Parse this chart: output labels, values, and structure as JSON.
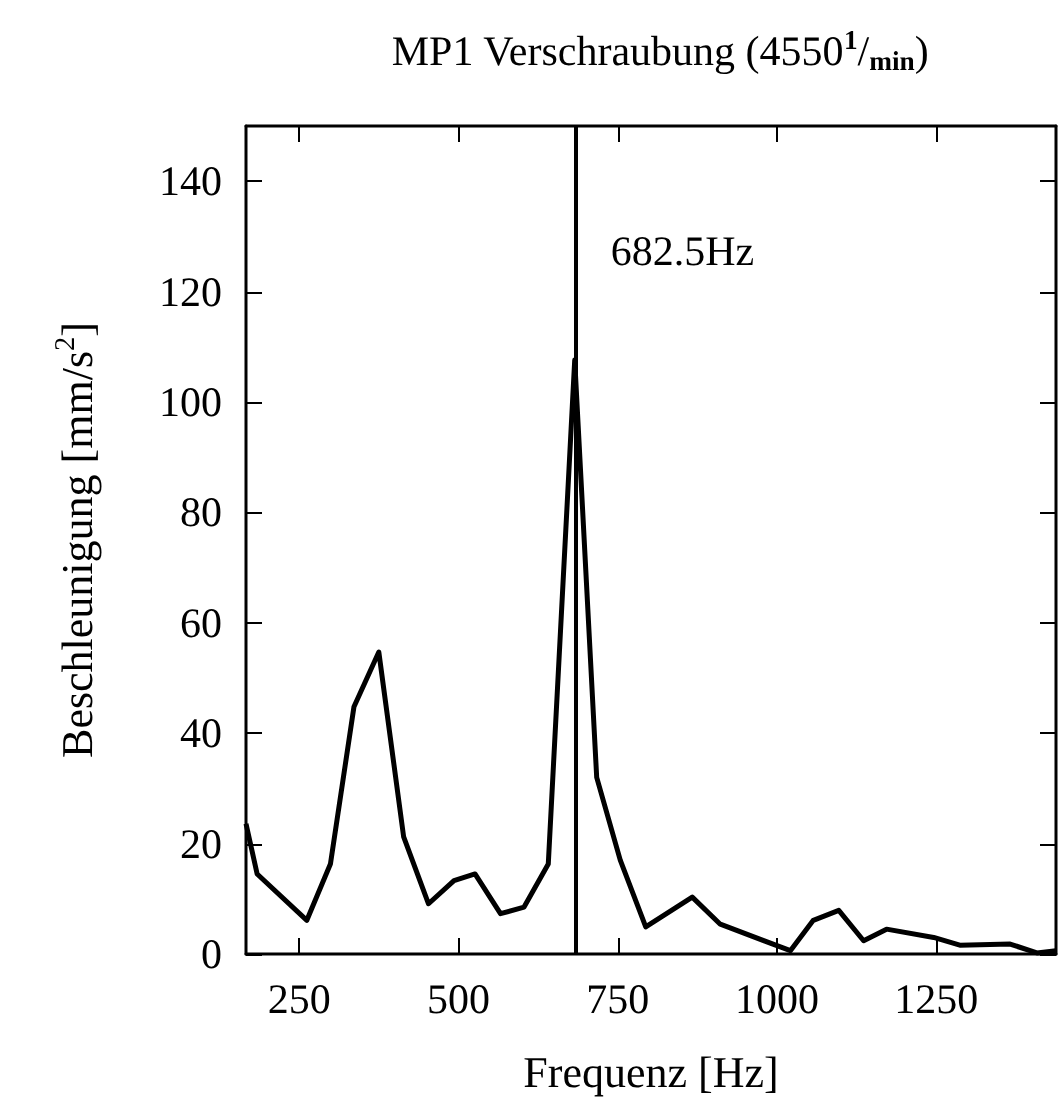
{
  "chart_data": {
    "type": "line",
    "title": "MP1 Verschraubung (4550$^{1}$/$_{min}$)",
    "xlabel": "Frequenz [Hz]",
    "ylabel": "Beschleunigung [mm/s$^{2}$]",
    "xlim": [
      166.5,
      1438
    ],
    "xticks": [
      250,
      500,
      750,
      1000,
      1250
    ],
    "ylim": [
      0,
      150
    ],
    "yticks": [
      0,
      20,
      40,
      60,
      80,
      100,
      120,
      140
    ],
    "grid": false,
    "x": [
      166.5,
      184,
      262,
      299,
      336,
      375,
      414,
      453,
      493,
      526,
      566,
      603,
      641,
      682.5,
      717,
      754,
      794,
      867,
      911,
      1021,
      1057,
      1097,
      1136,
      1172,
      1246,
      1287,
      1366,
      1408,
      1438
    ],
    "series": [
      {
        "color": "#000000",
        "values": [
          23.6,
          14.5,
          6.1,
          16.3,
          44.8,
          54.7,
          21.2,
          9.1,
          13.3,
          14.5,
          7.3,
          8.5,
          16.3,
          107.6,
          32,
          17,
          4.9,
          10.3,
          5.4,
          0.6,
          6.1,
          7.9,
          2.4,
          4.5,
          3.0,
          1.6,
          1.8,
          0.2,
          0.6
        ]
      }
    ],
    "ref_lines": [
      {
        "axis": "x",
        "value": 682.5,
        "label": "682.5Hz",
        "color": "#000000"
      }
    ]
  }
}
